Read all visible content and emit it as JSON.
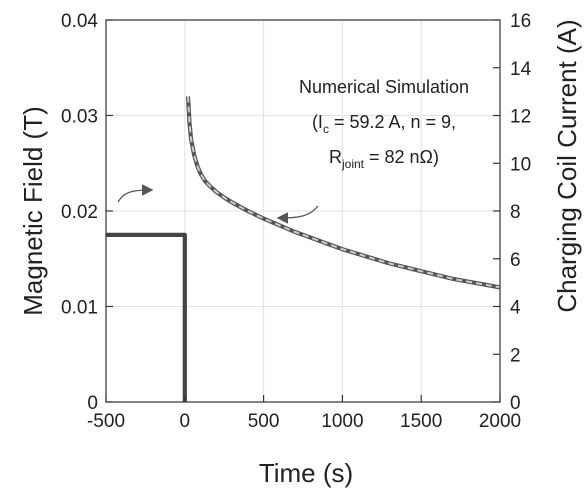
{
  "chart_data": {
    "type": "line",
    "title": "",
    "xlabel": "Time (s)",
    "ylabel_left": "Magnetic Field (T)",
    "ylabel_right": "Charging Coil Current (A)",
    "xlim": [
      -500,
      2000
    ],
    "ylim_left": [
      0,
      0.04
    ],
    "ylim_right": [
      0,
      16
    ],
    "x_ticks": [
      -500,
      0,
      500,
      1000,
      1500,
      2000
    ],
    "y_left_ticks": [
      0,
      0.01,
      0.02,
      0.03,
      0.04
    ],
    "y_left_tick_labels": [
      "0",
      "0.01",
      "0.02",
      "0.03",
      "0.04"
    ],
    "y_right_ticks": [
      0,
      2,
      4,
      6,
      8,
      10,
      12,
      14,
      16
    ],
    "grid": true,
    "series": [
      {
        "axis": "right",
        "style": "solid",
        "color": "#444444",
        "x": [
          -500,
          0,
          0
        ],
        "y": [
          7.0,
          7.0,
          0
        ]
      },
      {
        "axis": "left",
        "style": "solid",
        "color": "#555555",
        "x": [
          20,
          30,
          40,
          60,
          80,
          100,
          130,
          160,
          200,
          250,
          300,
          400,
          500,
          600,
          700,
          800,
          900,
          1000,
          1100,
          1200,
          1300,
          1400,
          1500,
          1600,
          1700,
          1800,
          1900,
          2000
        ],
        "y": [
          0.032,
          0.0292,
          0.0275,
          0.0258,
          0.0247,
          0.0239,
          0.0231,
          0.0226,
          0.022,
          0.0214,
          0.0209,
          0.02,
          0.0192,
          0.0185,
          0.0178,
          0.0172,
          0.0166,
          0.016,
          0.0155,
          0.015,
          0.0145,
          0.0141,
          0.0137,
          0.0133,
          0.0129,
          0.0126,
          0.0123,
          0.012
        ]
      },
      {
        "axis": "left",
        "style": "dashed",
        "color": "#cccccc",
        "x": [
          20,
          30,
          40,
          60,
          80,
          100,
          130,
          160,
          200,
          250,
          300,
          400,
          500,
          600,
          700,
          800,
          900,
          1000,
          1100,
          1200,
          1300,
          1400,
          1500,
          1600,
          1700,
          1800,
          1900,
          2000
        ],
        "y": [
          0.032,
          0.0292,
          0.0275,
          0.0258,
          0.0247,
          0.0239,
          0.0231,
          0.0226,
          0.022,
          0.0214,
          0.0209,
          0.02,
          0.0192,
          0.0185,
          0.0178,
          0.0172,
          0.0166,
          0.016,
          0.0155,
          0.015,
          0.0145,
          0.0141,
          0.0137,
          0.0133,
          0.0129,
          0.0126,
          0.0123,
          0.012
        ]
      }
    ],
    "annotation": {
      "line1": "Numerical Simulation",
      "line2_pre": "(I",
      "line2_sub": "c",
      "line2_post": " = 59.2 A, n = 9,",
      "line3_pre": "R",
      "line3_sub": "joint",
      "line3_post": " = 82 nΩ)"
    }
  }
}
